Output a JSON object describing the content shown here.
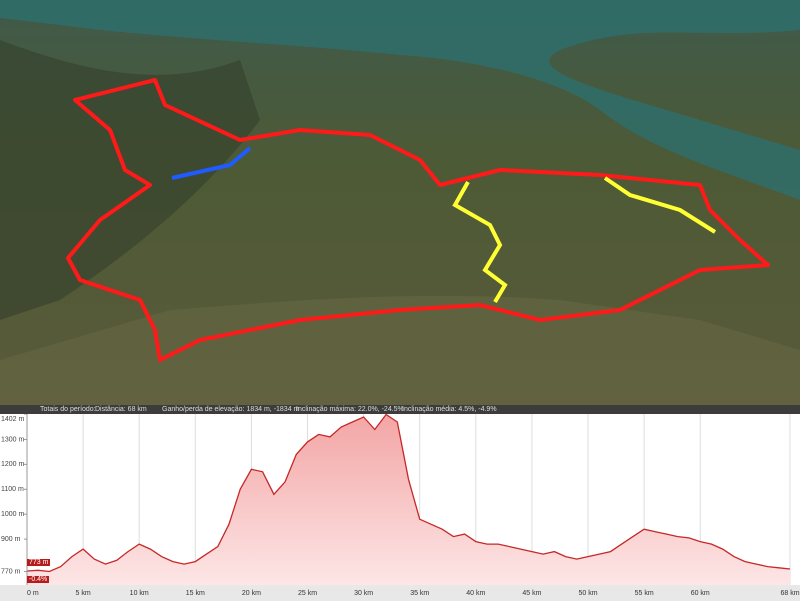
{
  "stats": {
    "label": "Totais do período:",
    "distance": "Distância: 68 km",
    "elevation": "Ganho/perda de elevação: 1834 m, -1834 m",
    "max_slope": "Inclinação máxima: 22.0%, -24.5%",
    "avg_slope": "Inclinação média: 4.5%, -4.9%"
  },
  "cursor": {
    "elevation": "773 m",
    "slope": "-0.4%"
  },
  "chart_data": {
    "type": "area",
    "color": "#c62828",
    "x": [
      0,
      1,
      2,
      3,
      4,
      5,
      6,
      7,
      8,
      9,
      10,
      11,
      12,
      13,
      14,
      15,
      16,
      17,
      18,
      19,
      20,
      21,
      22,
      23,
      24,
      25,
      26,
      27,
      28,
      29,
      30,
      31,
      32,
      33,
      34,
      35,
      36,
      37,
      38,
      39,
      40,
      41,
      42,
      43,
      44,
      45,
      46,
      47,
      48,
      49,
      50,
      51,
      52,
      53,
      54,
      55,
      56,
      57,
      58,
      59,
      60,
      61,
      62,
      63,
      64,
      65,
      66,
      67,
      68
    ],
    "values": [
      772,
      775,
      770,
      790,
      830,
      860,
      820,
      800,
      815,
      850,
      880,
      860,
      830,
      810,
      800,
      810,
      840,
      870,
      960,
      1100,
      1180,
      1170,
      1080,
      1130,
      1240,
      1290,
      1320,
      1310,
      1350,
      1370,
      1390,
      1340,
      1400,
      1370,
      1140,
      980,
      960,
      940,
      910,
      920,
      890,
      880,
      880,
      870,
      860,
      850,
      840,
      850,
      830,
      820,
      830,
      840,
      850,
      880,
      910,
      940,
      930,
      920,
      910,
      905,
      890,
      880,
      860,
      830,
      810,
      800,
      790,
      785,
      780
    ],
    "xlim": [
      0,
      68
    ],
    "xticks": [
      {
        "value": 0,
        "label": "0 m"
      },
      {
        "value": 5,
        "label": "5 km"
      },
      {
        "value": 10,
        "label": "10 km"
      },
      {
        "value": 15,
        "label": "15 km"
      },
      {
        "value": 20,
        "label": "20 km"
      },
      {
        "value": 25,
        "label": "25 km"
      },
      {
        "value": 30,
        "label": "30 km"
      },
      {
        "value": 35,
        "label": "35 km"
      },
      {
        "value": 40,
        "label": "40 km"
      },
      {
        "value": 45,
        "label": "45 km"
      },
      {
        "value": 50,
        "label": "50 km"
      },
      {
        "value": 55,
        "label": "55 km"
      },
      {
        "value": 60,
        "label": "60 km"
      },
      {
        "value": 68,
        "label": "68 km"
      }
    ],
    "ylim": [
      716,
      1402
    ],
    "yticks": [
      {
        "value": 770,
        "label": "770 m"
      },
      {
        "value": 900,
        "label": "900 m"
      },
      {
        "value": 1000,
        "label": "1000 m"
      },
      {
        "value": 1100,
        "label": "1100 m"
      },
      {
        "value": 1200,
        "label": "1200 m"
      },
      {
        "value": 1300,
        "label": "1300 m"
      },
      {
        "value": 1402,
        "label": "1402 m"
      }
    ],
    "grid": true
  }
}
